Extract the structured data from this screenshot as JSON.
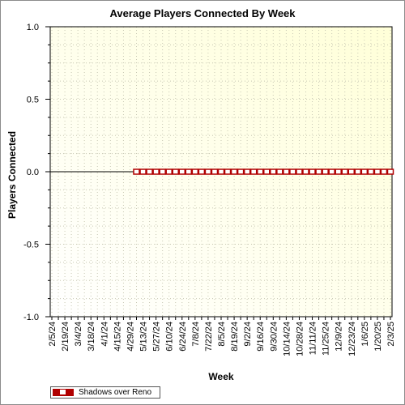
{
  "chart_data": {
    "type": "line",
    "title": "Average Players Connected By Week",
    "xlabel": "Week",
    "ylabel": "Players Connected",
    "ylim": [
      -1.0,
      1.0
    ],
    "yticks": [
      "1.0",
      "0.5",
      "0.0",
      "-0.5",
      "-1.0"
    ],
    "ytick_values": [
      1.0,
      0.5,
      0.0,
      -0.5,
      -1.0
    ],
    "x": [
      "2/5/24",
      "2/12/24",
      "2/19/24",
      "2/26/24",
      "3/4/24",
      "3/11/24",
      "3/18/24",
      "3/25/24",
      "4/1/24",
      "4/8/24",
      "4/15/24",
      "4/22/24",
      "4/29/24",
      "5/6/24",
      "5/13/24",
      "5/20/24",
      "5/27/24",
      "6/3/24",
      "6/10/24",
      "6/17/24",
      "6/24/24",
      "7/1/24",
      "7/8/24",
      "7/15/24",
      "7/22/24",
      "7/29/24",
      "8/5/24",
      "8/12/24",
      "8/19/24",
      "8/26/24",
      "9/2/24",
      "9/9/24",
      "9/16/24",
      "9/23/24",
      "9/30/24",
      "10/7/24",
      "10/14/24",
      "10/21/24",
      "10/28/24",
      "11/4/24",
      "11/11/24",
      "11/18/24",
      "11/25/24",
      "12/2/24",
      "12/9/24",
      "12/16/24",
      "12/23/24",
      "12/30/24",
      "1/6/25",
      "1/13/25",
      "1/20/25",
      "1/27/25",
      "2/3/25"
    ],
    "xtick_labels_shown": [
      "2/5/24",
      "2/19/24",
      "3/4/24",
      "3/18/24",
      "4/1/24",
      "4/15/24",
      "4/29/24",
      "5/13/24",
      "5/27/24",
      "6/10/24",
      "6/24/24",
      "7/8/24",
      "7/22/24",
      "8/5/24",
      "8/19/24",
      "9/2/24",
      "9/16/24",
      "9/30/24",
      "10/14/24",
      "10/28/24",
      "11/11/24",
      "11/25/24",
      "12/9/24",
      "12/23/24",
      "1/6/25",
      "1/20/25",
      "2/3/25"
    ],
    "series": [
      {
        "name": "Shadows over Reno",
        "color": "#b00000",
        "values": [
          null,
          null,
          null,
          null,
          null,
          null,
          null,
          null,
          null,
          null,
          null,
          null,
          null,
          0,
          0,
          0,
          0,
          0,
          0,
          0,
          0,
          0,
          0,
          0,
          0,
          0,
          0,
          0,
          0,
          0,
          0,
          0,
          0,
          0,
          0,
          0,
          0,
          0,
          0,
          0,
          0,
          0,
          0,
          0,
          0,
          0,
          0,
          0,
          0,
          0,
          0,
          0,
          0
        ]
      }
    ],
    "grid": true,
    "legend": "bottom-left",
    "plot_background": "#ffffe0"
  }
}
